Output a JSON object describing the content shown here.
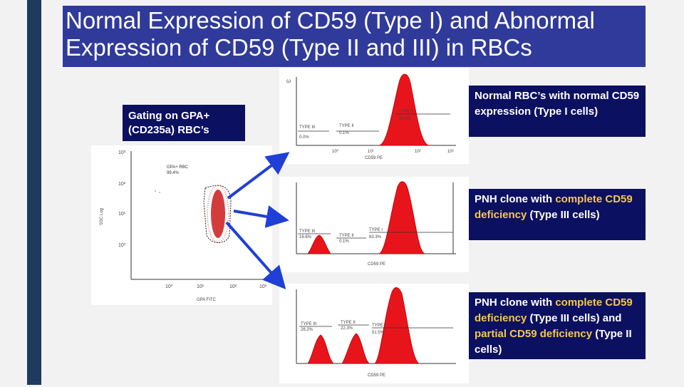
{
  "slide": {
    "title": "Normal Expression of CD59 (Type I) and Abnormal Expression of CD59 (Type II and III) in RBCs",
    "gating_label": "Gating on GPA+ (CD235a) RBC’s"
  },
  "dotplot": {
    "gate_label_line1": "GPA+ RBC",
    "gate_label_line2": "99.4%",
    "x_axis_label": "GPA FITC",
    "y_axis_label": "SSC Log",
    "y_ticks": [
      "10³",
      "10²",
      "10¹",
      "10⁰"
    ],
    "x_ticks": [
      "10⁰",
      "10¹",
      "10²",
      "10³"
    ]
  },
  "histograms": [
    {
      "x_label": "CD59 PE",
      "gates": [
        {
          "label": "TYPE III",
          "pct": "0.0%"
        },
        {
          "label": "TYPE II",
          "pct": "0.1%"
        },
        {
          "label": "TYPE I",
          "pct": "99.9%"
        }
      ],
      "x_ticks": [
        "10⁰",
        "10¹",
        "10²",
        "10³"
      ]
    },
    {
      "x_label": "CD59 PE",
      "gates": [
        {
          "label": "TYPE III",
          "pct": "16.6%"
        },
        {
          "label": "TYPE II",
          "pct": "0.1%"
        },
        {
          "label": "TYPE I",
          "pct": "83.3%"
        }
      ]
    },
    {
      "x_label": "CD59 PE",
      "gates": [
        {
          "label": "TYPE III",
          "pct": "26.2%"
        },
        {
          "label": "TYPE II",
          "pct": "22.3%"
        },
        {
          "label": "TYPE I",
          "pct": "51.5%"
        }
      ]
    }
  ],
  "callouts": {
    "c1": "Normal RBC’s with normal CD59 expression (Type I cells)",
    "c2": {
      "a": "PNH clone with ",
      "b": "complete CD59 deficiency",
      "c": " (Type III cells)"
    },
    "c3": {
      "a": "PNH clone with ",
      "b": "complete CD59 deficiency",
      "c": " (Type III cells) and ",
      "d": "partial CD59 deficiency",
      "e": " (Type II cells)"
    }
  },
  "colors": {
    "title_bg": "#303a9a",
    "callout_bg": "#0c1060",
    "highlight": "#f6c84d",
    "histogram_fill": "#e8141c",
    "arrow": "#1f3fd6"
  }
}
